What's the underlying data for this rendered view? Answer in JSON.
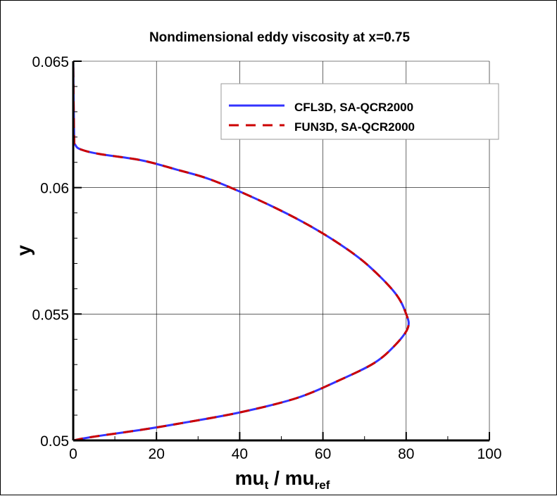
{
  "chart_data": {
    "type": "line",
    "title": "Nondimensional eddy viscosity at x=0.75",
    "xlabel": {
      "main": "mu",
      "sub1": "t",
      "sep": " / mu",
      "sub2": "ref"
    },
    "ylabel": "y",
    "xlim": [
      0,
      100
    ],
    "ylim": [
      0.05,
      0.065
    ],
    "xticks": [
      0,
      20,
      40,
      60,
      80,
      100
    ],
    "xtick_labels": [
      "0",
      "20",
      "40",
      "60",
      "80",
      "100"
    ],
    "yticks": [
      0.05,
      0.055,
      0.06,
      0.065
    ],
    "ytick_labels": [
      "0.05",
      "0.055",
      "0.06",
      "0.065"
    ],
    "grid": true,
    "legend_placement": "top-right",
    "series": [
      {
        "name": "CFL3D, SA-QCR2000",
        "color": "#3333ff",
        "style": "solid",
        "x": [
          0,
          4.6,
          16.4,
          26.6,
          40.1,
          53.6,
          63.8,
          72.3,
          77.3,
          80.4,
          80.0,
          77.3,
          70.6,
          63.8,
          55.3,
          45.2,
          33.3,
          24.9,
          16.4,
          6.3,
          2.0,
          0.5,
          0.2,
          0
        ],
        "y": [
          0.05,
          0.05014,
          0.05042,
          0.0507,
          0.05111,
          0.05167,
          0.05237,
          0.05306,
          0.05376,
          0.05445,
          0.055,
          0.05584,
          0.05696,
          0.05779,
          0.05863,
          0.05946,
          0.0603,
          0.06071,
          0.06108,
          0.06133,
          0.0615,
          0.06169,
          0.0621,
          0.065
        ]
      },
      {
        "name": "FUN3D, SA-QCR2000",
        "color": "#cc0000",
        "style": "dashed",
        "x": [
          0,
          4.6,
          16.4,
          26.6,
          40.1,
          53.6,
          63.8,
          72.3,
          77.3,
          80.4,
          80.0,
          77.3,
          70.6,
          63.8,
          55.3,
          45.2,
          33.3,
          24.9,
          16.4,
          6.3,
          2.0,
          0.5,
          0.2,
          0
        ],
        "y": [
          0.05,
          0.05014,
          0.05042,
          0.0507,
          0.05111,
          0.05167,
          0.05237,
          0.05306,
          0.05376,
          0.05445,
          0.055,
          0.05584,
          0.05696,
          0.05779,
          0.05863,
          0.05946,
          0.0603,
          0.06071,
          0.06108,
          0.06133,
          0.0615,
          0.06169,
          0.0621,
          0.065
        ]
      }
    ]
  }
}
